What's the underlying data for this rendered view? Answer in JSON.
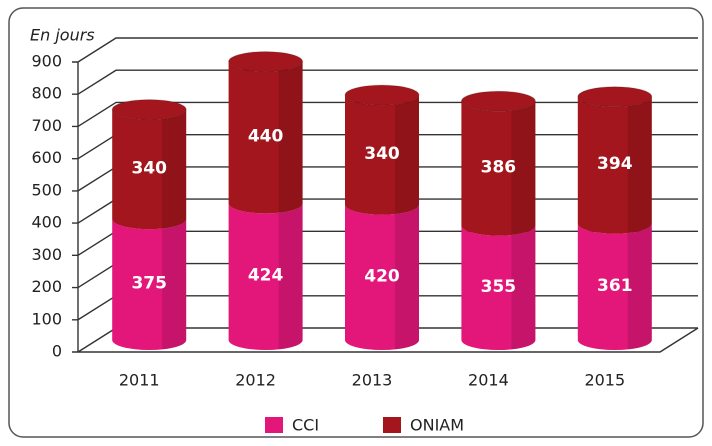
{
  "chart_data": {
    "type": "bar",
    "stacked": true,
    "subtitle": "En jours",
    "categories": [
      "2011",
      "2012",
      "2013",
      "2014",
      "2015"
    ],
    "series": [
      {
        "name": "CCI",
        "color": "#e3177a",
        "values": [
          375,
          424,
          420,
          355,
          361
        ]
      },
      {
        "name": "ONIAM",
        "color": "#a3161d",
        "values": [
          340,
          440,
          340,
          386,
          394
        ]
      }
    ],
    "ylim": [
      0,
      900
    ],
    "yticks": [
      0,
      100,
      200,
      300,
      400,
      500,
      600,
      700,
      800,
      900
    ],
    "grid": true
  }
}
